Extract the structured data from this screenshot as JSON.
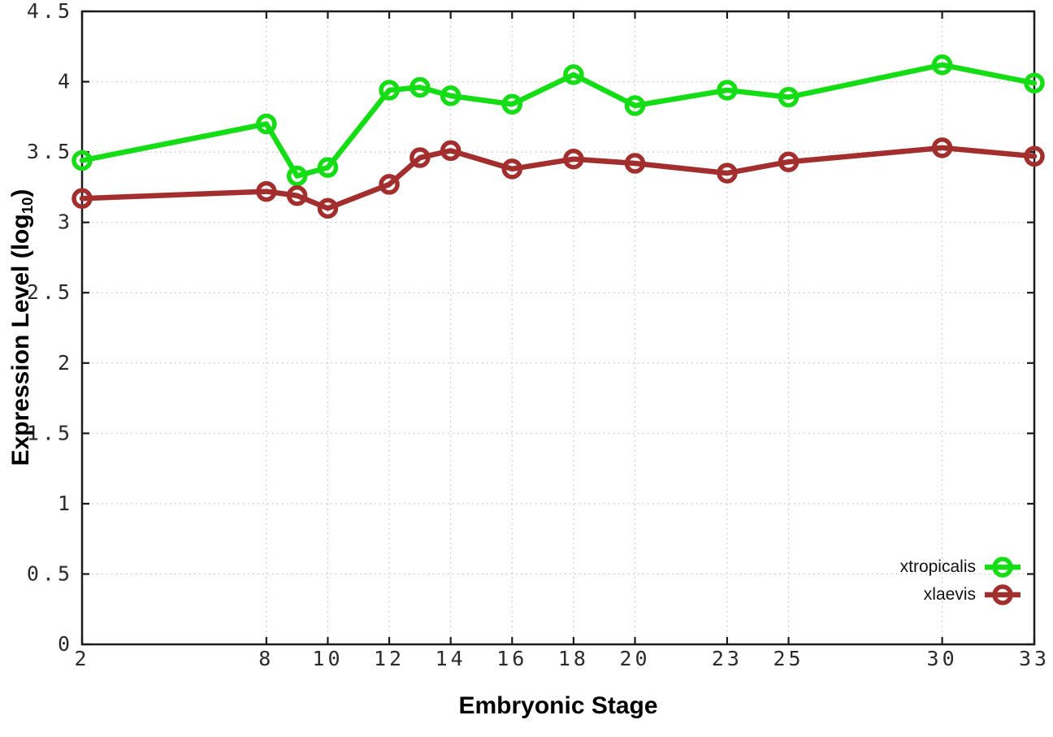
{
  "chart_data": {
    "type": "line",
    "title": "",
    "xlabel": "Embryonic Stage",
    "ylabel": "Expression Level (log10)",
    "ylabel_parts": {
      "main": "Expression Level (log",
      "sub": "10",
      "close": ")"
    },
    "x": [
      2,
      8,
      9,
      10,
      12,
      13,
      14,
      16,
      18,
      20,
      23,
      25,
      30,
      33
    ],
    "series": [
      {
        "name": "xtropicalis",
        "color": "#15dd15",
        "marker": "open-circle",
        "values": [
          3.44,
          3.7,
          3.33,
          3.39,
          3.94,
          3.96,
          3.9,
          3.84,
          4.05,
          3.83,
          3.94,
          3.89,
          4.12,
          3.99
        ]
      },
      {
        "name": "xlaevis",
        "color": "#a32e2e",
        "marker": "open-circle",
        "values": [
          3.17,
          3.22,
          3.19,
          3.1,
          3.27,
          3.46,
          3.51,
          3.38,
          3.45,
          3.42,
          3.35,
          3.43,
          3.53,
          3.47
        ]
      }
    ],
    "xlim": [
      2,
      33
    ],
    "ylim": [
      0,
      4.5
    ],
    "x_ticks": [
      2,
      8,
      10,
      12,
      14,
      16,
      18,
      20,
      23,
      25,
      30,
      33
    ],
    "x_tick_labels": [
      "2",
      "8",
      "10",
      "12",
      "14",
      "16",
      "18",
      "20",
      "23",
      "25",
      "30",
      "33"
    ],
    "y_ticks": [
      0,
      0.5,
      1,
      1.5,
      2,
      2.5,
      3,
      3.5,
      4,
      4.5
    ],
    "y_tick_labels": [
      "0",
      "0.5",
      "1",
      "1.5",
      "2",
      "2.5",
      "3",
      "3.5",
      "4",
      "4.5"
    ],
    "grid": true,
    "grid_style": "dotted",
    "grid_color": "#c2c2c2",
    "axis_color": "#1a1a1a",
    "tick_label_color": "#2b2b2b",
    "background_color": "#ffffff",
    "legend_position": "bottom-right"
  }
}
